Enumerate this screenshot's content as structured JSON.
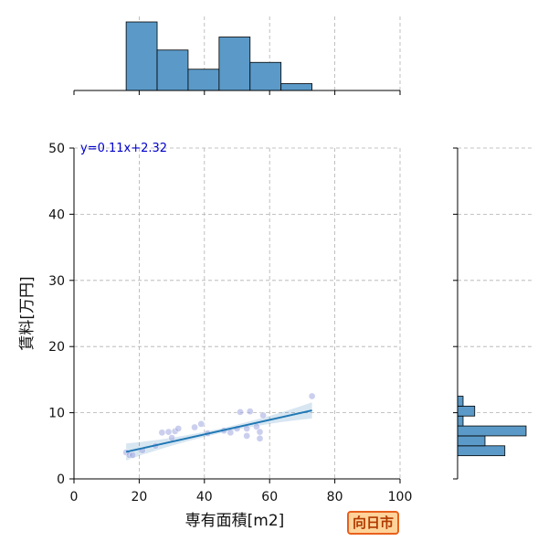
{
  "chart_data": {
    "type": "scatter",
    "xlabel": "専有面積[m2]",
    "ylabel": "賃料[万円]",
    "xlim": [
      0,
      100
    ],
    "ylim": [
      0,
      50
    ],
    "xticks": [
      0,
      20,
      40,
      60,
      80,
      100
    ],
    "yticks": [
      0,
      10,
      20,
      30,
      40,
      50
    ],
    "grid": true,
    "regression": {
      "label": "y=0.11x+2.32",
      "slope": 0.11,
      "intercept": 2.32,
      "x_range": [
        16,
        73
      ]
    },
    "points": [
      {
        "x": 16,
        "y": 4.0
      },
      {
        "x": 17,
        "y": 3.6
      },
      {
        "x": 18,
        "y": 3.6
      },
      {
        "x": 21,
        "y": 4.3
      },
      {
        "x": 25,
        "y": 5.0
      },
      {
        "x": 27,
        "y": 7.0
      },
      {
        "x": 29,
        "y": 7.1
      },
      {
        "x": 30,
        "y": 6.2
      },
      {
        "x": 31,
        "y": 7.2
      },
      {
        "x": 32,
        "y": 7.6
      },
      {
        "x": 37,
        "y": 7.8
      },
      {
        "x": 39,
        "y": 8.3
      },
      {
        "x": 41,
        "y": 6.9
      },
      {
        "x": 46,
        "y": 7.3
      },
      {
        "x": 48,
        "y": 7.0
      },
      {
        "x": 50,
        "y": 7.6
      },
      {
        "x": 51,
        "y": 10.1
      },
      {
        "x": 53,
        "y": 6.5
      },
      {
        "x": 53,
        "y": 7.6
      },
      {
        "x": 54,
        "y": 10.2
      },
      {
        "x": 56,
        "y": 7.9
      },
      {
        "x": 57,
        "y": 6.1
      },
      {
        "x": 57,
        "y": 7.1
      },
      {
        "x": 58,
        "y": 9.6
      },
      {
        "x": 73,
        "y": 12.5
      }
    ],
    "top_histogram": {
      "bins": [
        [
          16,
          25.5
        ],
        [
          25.5,
          35
        ],
        [
          35,
          44.5
        ],
        [
          44.5,
          54
        ],
        [
          54,
          63.5
        ],
        [
          63.5,
          73
        ]
      ],
      "heights": [
        1.0,
        0.59,
        0.31,
        0.78,
        0.41,
        0.1
      ]
    },
    "right_histogram": {
      "bins": [
        [
          3.5,
          5.0
        ],
        [
          5.0,
          6.5
        ],
        [
          6.5,
          8.0
        ],
        [
          8.0,
          9.5
        ],
        [
          9.5,
          11.0
        ],
        [
          11.0,
          12.5
        ]
      ],
      "heights": [
        0.69,
        0.4,
        1.0,
        0.08,
        0.25,
        0.08
      ]
    }
  },
  "badge": {
    "text": "向日市"
  },
  "colors": {
    "bar": "#5b9ac8",
    "line": "#1f77b4",
    "label": "#0000cc",
    "point": "#a0a8e0"
  }
}
